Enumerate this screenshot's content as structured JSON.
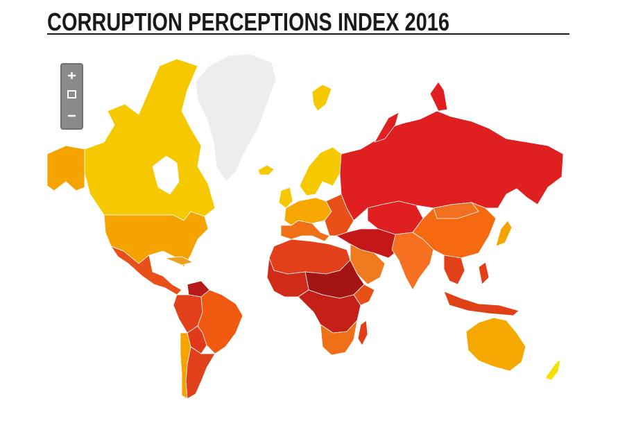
{
  "header": {
    "title": "CORRUPTION PERCEPTIONS INDEX 2016"
  }
}
